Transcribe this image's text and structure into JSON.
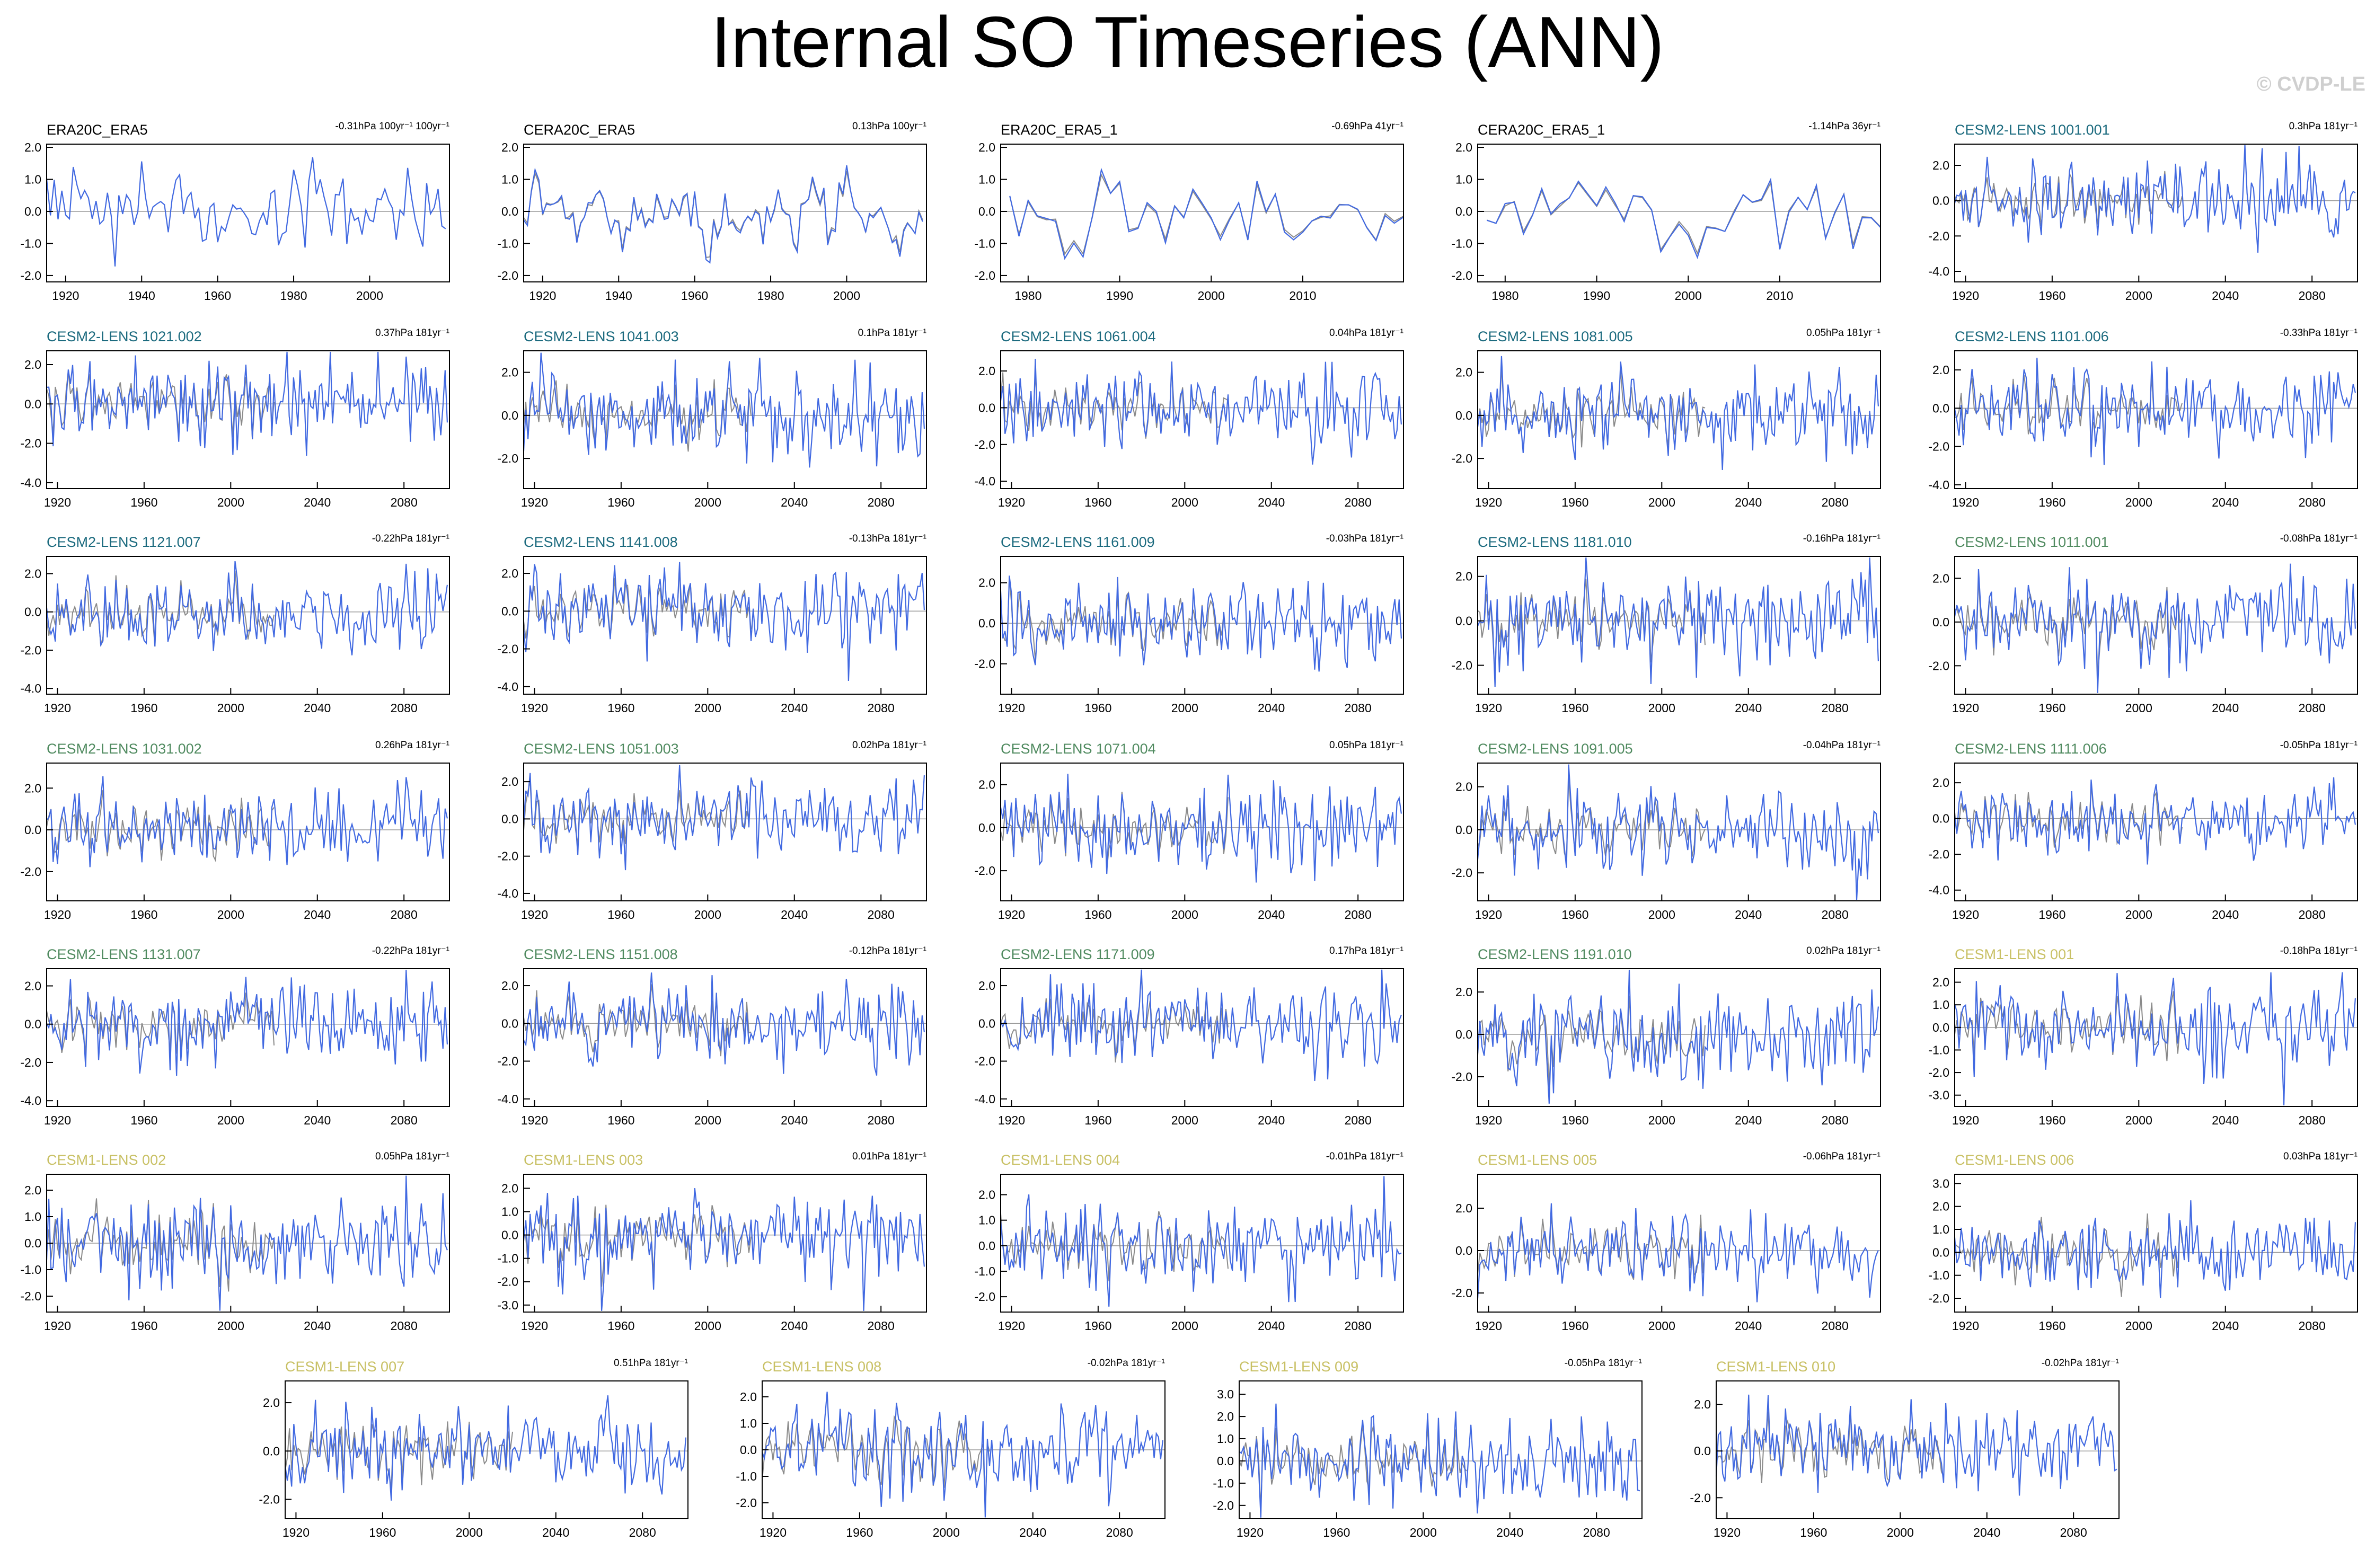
{
  "title": "Internal SO Timeseries (ANN)",
  "watermark": "© CVDP-LE",
  "colors": {
    "model": "#4169e1",
    "obs": "#8a8a8a",
    "zero": "#9a9a9a",
    "obs_title": "#000000",
    "cesm2_a": "#1b6a7e",
    "cesm2_b": "#4f8a5f",
    "cesm1": "#c8c064"
  },
  "chart_data": [
    {
      "type": "line",
      "title": "ERA20C_ERA5",
      "stat": "-0.31hPa 100yr⁻¹ 100yr⁻¹",
      "title_color": "obs_title",
      "xlim": [
        1915,
        2021
      ],
      "xticks": [
        1920,
        1940,
        1960,
        1980,
        2000
      ],
      "yticks": [
        2.0,
        1.0,
        0.0,
        -1.0,
        -2.0
      ],
      "ylim": [
        -2.2,
        2.1
      ],
      "seed": 3,
      "x0": 1915,
      "n": 106,
      "amp": 0.85,
      "step": 1,
      "shape": "smooth"
    },
    {
      "type": "line",
      "title": "CERA20C_ERA5",
      "stat": "0.13hPa 100yr⁻¹",
      "title_color": "obs_title",
      "xlim": [
        1915,
        2021
      ],
      "xticks": [
        1920,
        1940,
        1960,
        1980,
        2000
      ],
      "yticks": [
        2.0,
        1.0,
        0.0,
        -1.0,
        -2.0
      ],
      "ylim": [
        -2.2,
        2.1
      ],
      "seed": 5,
      "x0": 1915,
      "n": 106,
      "amp": 0.75,
      "step": 1,
      "shape": "smooth",
      "obs_overlay": true
    },
    {
      "type": "line",
      "title": "ERA20C_ERA5_1",
      "stat": "-0.69hPa 41yr⁻¹",
      "title_color": "obs_title",
      "xlim": [
        1977,
        2021
      ],
      "xticks": [
        1980,
        1990,
        2000,
        2010
      ],
      "yticks": [
        2.0,
        1.0,
        0.0,
        -1.0,
        -2.0
      ],
      "ylim": [
        -2.2,
        2.1
      ],
      "seed": 7,
      "x0": 1978,
      "n": 44,
      "amp": 0.8,
      "step": 1,
      "shape": "smooth",
      "obs_overlay": true
    },
    {
      "type": "line",
      "title": "CERA20C_ERA5_1",
      "stat": "-1.14hPa 36yr⁻¹",
      "title_color": "obs_title",
      "xlim": [
        1977,
        2021
      ],
      "xticks": [
        1980,
        1990,
        2000,
        2010
      ],
      "yticks": [
        2.0,
        1.0,
        0.0,
        -1.0,
        -2.0
      ],
      "ylim": [
        -2.2,
        2.1
      ],
      "seed": 9,
      "x0": 1978,
      "n": 44,
      "amp": 0.8,
      "step": 1,
      "shape": "smooth",
      "obs_overlay": true
    },
    {
      "type": "line",
      "title": "CESM2-LENS 1001.001",
      "stat": "0.3hPa 181yr⁻¹",
      "title_color": "cesm2_a",
      "xlim": [
        1915,
        2101
      ],
      "xticks": [
        1920,
        1960,
        2000,
        2040,
        2080
      ],
      "yticks": [
        2.0,
        0.0,
        -2.0,
        -4.0
      ],
      "ylim": [
        -4.6,
        3.2
      ],
      "seed": 11,
      "x0": 1915,
      "n": 186,
      "amp": 1.05,
      "step": 1,
      "shape": "noisy",
      "obs_overlay": true
    },
    {
      "type": "line",
      "title": "CESM2-LENS 1021.002",
      "stat": "0.37hPa 181yr⁻¹",
      "title_color": "cesm2_a",
      "xlim": [
        1915,
        2101
      ],
      "xticks": [
        1920,
        1960,
        2000,
        2040,
        2080
      ],
      "yticks": [
        2.0,
        0.0,
        -2.0,
        -4.0
      ],
      "ylim": [
        -4.3,
        2.7
      ],
      "seed": 13,
      "x0": 1915,
      "n": 186,
      "amp": 1.05,
      "step": 1,
      "shape": "noisy",
      "obs_overlay": true
    },
    {
      "type": "line",
      "title": "CESM2-LENS 1041.003",
      "stat": "0.1hPa 181yr⁻¹",
      "title_color": "cesm2_a",
      "xlim": [
        1915,
        2101
      ],
      "xticks": [
        1920,
        1960,
        2000,
        2040,
        2080
      ],
      "yticks": [
        2.0,
        0.0,
        -2.0
      ],
      "ylim": [
        -3.4,
        3.0
      ],
      "seed": 15,
      "x0": 1915,
      "n": 186,
      "amp": 1.0,
      "step": 1,
      "shape": "noisy",
      "obs_overlay": true
    },
    {
      "type": "line",
      "title": "CESM2-LENS 1061.004",
      "stat": "0.04hPa 181yr⁻¹",
      "title_color": "cesm2_a",
      "xlim": [
        1915,
        2101
      ],
      "xticks": [
        1920,
        1960,
        2000,
        2040,
        2080
      ],
      "yticks": [
        2.0,
        0.0,
        -2.0,
        -4.0
      ],
      "ylim": [
        -4.4,
        3.1
      ],
      "seed": 17,
      "x0": 1915,
      "n": 186,
      "amp": 1.05,
      "step": 1,
      "shape": "noisy",
      "obs_overlay": true
    },
    {
      "type": "line",
      "title": "CESM2-LENS 1081.005",
      "stat": "0.05hPa 181yr⁻¹",
      "title_color": "cesm2_a",
      "xlim": [
        1915,
        2101
      ],
      "xticks": [
        1920,
        1960,
        2000,
        2040,
        2080
      ],
      "yticks": [
        2.0,
        0.0,
        -2.0
      ],
      "ylim": [
        -3.4,
        3.0
      ],
      "seed": 19,
      "x0": 1915,
      "n": 186,
      "amp": 1.0,
      "step": 1,
      "shape": "noisy",
      "obs_overlay": true
    },
    {
      "type": "line",
      "title": "CESM2-LENS 1101.006",
      "stat": "-0.33hPa 181yr⁻¹",
      "title_color": "cesm2_a",
      "xlim": [
        1915,
        2101
      ],
      "xticks": [
        1920,
        1960,
        2000,
        2040,
        2080
      ],
      "yticks": [
        2.0,
        0.0,
        -2.0,
        -4.0
      ],
      "ylim": [
        -4.2,
        3.0
      ],
      "seed": 21,
      "x0": 1915,
      "n": 186,
      "amp": 1.05,
      "step": 1,
      "shape": "noisy",
      "obs_overlay": true
    },
    {
      "type": "line",
      "title": "CESM2-LENS 1121.007",
      "stat": "-0.22hPa 181yr⁻¹",
      "title_color": "cesm2_a",
      "xlim": [
        1915,
        2101
      ],
      "xticks": [
        1920,
        1960,
        2000,
        2040,
        2080
      ],
      "yticks": [
        2.0,
        0.0,
        -2.0,
        -4.0
      ],
      "ylim": [
        -4.3,
        2.9
      ],
      "seed": 23,
      "x0": 1915,
      "n": 186,
      "amp": 1.05,
      "step": 1,
      "shape": "noisy",
      "obs_overlay": true
    },
    {
      "type": "line",
      "title": "CESM2-LENS 1141.008",
      "stat": "-0.13hPa 181yr⁻¹",
      "title_color": "cesm2_a",
      "xlim": [
        1915,
        2101
      ],
      "xticks": [
        1920,
        1960,
        2000,
        2040,
        2080
      ],
      "yticks": [
        2.0,
        0.0,
        -2.0,
        -4.0
      ],
      "ylim": [
        -4.4,
        2.9
      ],
      "seed": 25,
      "x0": 1915,
      "n": 186,
      "amp": 1.05,
      "step": 1,
      "shape": "noisy",
      "obs_overlay": true
    },
    {
      "type": "line",
      "title": "CESM2-LENS 1161.009",
      "stat": "-0.03hPa 181yr⁻¹",
      "title_color": "cesm2_a",
      "xlim": [
        1915,
        2101
      ],
      "xticks": [
        1920,
        1960,
        2000,
        2040,
        2080
      ],
      "yticks": [
        2.0,
        0.0,
        -2.0
      ],
      "ylim": [
        -3.5,
        3.3
      ],
      "seed": 27,
      "x0": 1915,
      "n": 186,
      "amp": 1.0,
      "step": 1,
      "shape": "noisy",
      "obs_overlay": true
    },
    {
      "type": "line",
      "title": "CESM2-LENS 1181.010",
      "stat": "-0.16hPa 181yr⁻¹",
      "title_color": "cesm2_a",
      "xlim": [
        1915,
        2101
      ],
      "xticks": [
        1920,
        1960,
        2000,
        2040,
        2080
      ],
      "yticks": [
        2.0,
        0.0,
        -2.0
      ],
      "ylim": [
        -3.3,
        2.9
      ],
      "seed": 29,
      "x0": 1915,
      "n": 186,
      "amp": 1.0,
      "step": 1,
      "shape": "noisy",
      "obs_overlay": true
    },
    {
      "type": "line",
      "title": "CESM2-LENS 1011.001",
      "stat": "-0.08hPa 181yr⁻¹",
      "title_color": "cesm2_b",
      "xlim": [
        1915,
        2101
      ],
      "xticks": [
        1920,
        1960,
        2000,
        2040,
        2080
      ],
      "yticks": [
        2.0,
        0.0,
        -2.0
      ],
      "ylim": [
        -3.3,
        3.0
      ],
      "seed": 31,
      "x0": 1915,
      "n": 186,
      "amp": 1.0,
      "step": 1,
      "shape": "noisy",
      "obs_overlay": true
    },
    {
      "type": "line",
      "title": "CESM2-LENS 1031.002",
      "stat": "0.26hPa 181yr⁻¹",
      "title_color": "cesm2_b",
      "xlim": [
        1915,
        2101
      ],
      "xticks": [
        1920,
        1960,
        2000,
        2040,
        2080
      ],
      "yticks": [
        2.0,
        0.0,
        -2.0
      ],
      "ylim": [
        -3.4,
        3.2
      ],
      "seed": 33,
      "x0": 1915,
      "n": 186,
      "amp": 1.0,
      "step": 1,
      "shape": "noisy",
      "obs_overlay": true
    },
    {
      "type": "line",
      "title": "CESM2-LENS 1051.003",
      "stat": "0.02hPa 181yr⁻¹",
      "title_color": "cesm2_b",
      "xlim": [
        1915,
        2101
      ],
      "xticks": [
        1920,
        1960,
        2000,
        2040,
        2080
      ],
      "yticks": [
        2.0,
        0.0,
        -2.0,
        -4.0
      ],
      "ylim": [
        -4.4,
        3.0
      ],
      "seed": 35,
      "x0": 1915,
      "n": 186,
      "amp": 1.0,
      "step": 1,
      "shape": "noisy",
      "obs_overlay": true
    },
    {
      "type": "line",
      "title": "CESM2-LENS 1071.004",
      "stat": "0.05hPa 181yr⁻¹",
      "title_color": "cesm2_b",
      "xlim": [
        1915,
        2101
      ],
      "xticks": [
        1920,
        1960,
        2000,
        2040,
        2080
      ],
      "yticks": [
        2.0,
        0.0,
        -2.0
      ],
      "ylim": [
        -3.4,
        3.0
      ],
      "seed": 37,
      "x0": 1915,
      "n": 186,
      "amp": 1.0,
      "step": 1,
      "shape": "noisy",
      "obs_overlay": true
    },
    {
      "type": "line",
      "title": "CESM2-LENS 1091.005",
      "stat": "-0.04hPa 181yr⁻¹",
      "title_color": "cesm2_b",
      "xlim": [
        1915,
        2101
      ],
      "xticks": [
        1920,
        1960,
        2000,
        2040,
        2080
      ],
      "yticks": [
        2.0,
        0.0,
        -2.0
      ],
      "ylim": [
        -3.3,
        3.1
      ],
      "seed": 39,
      "x0": 1915,
      "n": 186,
      "amp": 1.0,
      "step": 1,
      "shape": "noisy",
      "obs_overlay": true
    },
    {
      "type": "line",
      "title": "CESM2-LENS 1111.006",
      "stat": "-0.05hPa 181yr⁻¹",
      "title_color": "cesm2_b",
      "xlim": [
        1915,
        2101
      ],
      "xticks": [
        1920,
        1960,
        2000,
        2040,
        2080
      ],
      "yticks": [
        2.0,
        0.0,
        -2.0,
        -4.0
      ],
      "ylim": [
        -4.6,
        3.1
      ],
      "seed": 41,
      "x0": 1915,
      "n": 186,
      "amp": 1.05,
      "step": 1,
      "shape": "noisy",
      "obs_overlay": true
    },
    {
      "type": "line",
      "title": "CESM2-LENS 1131.007",
      "stat": "-0.22hPa 181yr⁻¹",
      "title_color": "cesm2_b",
      "xlim": [
        1915,
        2101
      ],
      "xticks": [
        1920,
        1960,
        2000,
        2040,
        2080
      ],
      "yticks": [
        2.0,
        0.0,
        -2.0,
        -4.0
      ],
      "ylim": [
        -4.3,
        2.9
      ],
      "seed": 43,
      "x0": 1915,
      "n": 186,
      "amp": 1.05,
      "step": 1,
      "shape": "noisy",
      "obs_overlay": true
    },
    {
      "type": "line",
      "title": "CESM2-LENS 1151.008",
      "stat": "-0.12hPa 181yr⁻¹",
      "title_color": "cesm2_b",
      "xlim": [
        1915,
        2101
      ],
      "xticks": [
        1920,
        1960,
        2000,
        2040,
        2080
      ],
      "yticks": [
        2.0,
        0.0,
        -2.0,
        -4.0
      ],
      "ylim": [
        -4.4,
        2.9
      ],
      "seed": 45,
      "x0": 1915,
      "n": 186,
      "amp": 1.05,
      "step": 1,
      "shape": "noisy",
      "obs_overlay": true
    },
    {
      "type": "line",
      "title": "CESM2-LENS 1171.009",
      "stat": "0.17hPa 181yr⁻¹",
      "title_color": "cesm2_b",
      "xlim": [
        1915,
        2101
      ],
      "xticks": [
        1920,
        1960,
        2000,
        2040,
        2080
      ],
      "yticks": [
        2.0,
        0.0,
        -2.0,
        -4.0
      ],
      "ylim": [
        -4.4,
        2.9
      ],
      "seed": 47,
      "x0": 1915,
      "n": 186,
      "amp": 1.05,
      "step": 1,
      "shape": "noisy",
      "obs_overlay": true
    },
    {
      "type": "line",
      "title": "CESM2-LENS 1191.010",
      "stat": "0.02hPa 181yr⁻¹",
      "title_color": "cesm2_b",
      "xlim": [
        1915,
        2101
      ],
      "xticks": [
        1920,
        1960,
        2000,
        2040,
        2080
      ],
      "yticks": [
        2.0,
        0.0,
        -2.0
      ],
      "ylim": [
        -3.4,
        3.1
      ],
      "seed": 49,
      "x0": 1915,
      "n": 186,
      "amp": 1.0,
      "step": 1,
      "shape": "noisy",
      "obs_overlay": true
    },
    {
      "type": "line",
      "title": "CESM1-LENS 001",
      "stat": "-0.18hPa 181yr⁻¹",
      "title_color": "cesm1",
      "xlim": [
        1915,
        2101
      ],
      "xticks": [
        1920,
        1960,
        2000,
        2040,
        2080
      ],
      "yticks": [
        2.0,
        1.0,
        0.0,
        -1.0,
        -2.0,
        -3.0
      ],
      "ylim": [
        -3.5,
        2.6
      ],
      "seed": 51,
      "x0": 1915,
      "n": 186,
      "amp": 0.95,
      "step": 1,
      "shape": "noisy",
      "obs_overlay": true
    },
    {
      "type": "line",
      "title": "CESM1-LENS 002",
      "stat": "0.05hPa 181yr⁻¹",
      "title_color": "cesm1",
      "xlim": [
        1915,
        2101
      ],
      "xticks": [
        1920,
        1960,
        2000,
        2040,
        2080
      ],
      "yticks": [
        2.0,
        1.0,
        0.0,
        -1.0,
        -2.0
      ],
      "ylim": [
        -2.6,
        2.6
      ],
      "seed": 53,
      "x0": 1915,
      "n": 186,
      "amp": 0.85,
      "step": 1,
      "shape": "noisy",
      "obs_overlay": true
    },
    {
      "type": "line",
      "title": "CESM1-LENS 003",
      "stat": "0.01hPa 181yr⁻¹",
      "title_color": "cesm1",
      "xlim": [
        1915,
        2101
      ],
      "xticks": [
        1920,
        1960,
        2000,
        2040,
        2080
      ],
      "yticks": [
        2.0,
        1.0,
        0.0,
        -1.0,
        -2.0,
        -3.0
      ],
      "ylim": [
        -3.3,
        2.6
      ],
      "seed": 55,
      "x0": 1915,
      "n": 186,
      "amp": 0.9,
      "step": 1,
      "shape": "noisy",
      "obs_overlay": true
    },
    {
      "type": "line",
      "title": "CESM1-LENS 004",
      "stat": "-0.01hPa 181yr⁻¹",
      "title_color": "cesm1",
      "xlim": [
        1915,
        2101
      ],
      "xticks": [
        1920,
        1960,
        2000,
        2040,
        2080
      ],
      "yticks": [
        2.0,
        1.0,
        0.0,
        -1.0,
        -2.0
      ],
      "ylim": [
        -2.6,
        2.8
      ],
      "seed": 57,
      "x0": 1915,
      "n": 186,
      "amp": 0.85,
      "step": 1,
      "shape": "noisy",
      "obs_overlay": true
    },
    {
      "type": "line",
      "title": "CESM1-LENS 005",
      "stat": "-0.06hPa 181yr⁻¹",
      "title_color": "cesm1",
      "xlim": [
        1915,
        2101
      ],
      "xticks": [
        1920,
        1960,
        2000,
        2040,
        2080
      ],
      "yticks": [
        2.0,
        0.0,
        -2.0
      ],
      "ylim": [
        -2.9,
        3.6
      ],
      "seed": 59,
      "x0": 1915,
      "n": 186,
      "amp": 0.85,
      "step": 1,
      "shape": "noisy",
      "obs_overlay": true
    },
    {
      "type": "line",
      "title": "CESM1-LENS 006",
      "stat": "0.03hPa 181yr⁻¹",
      "title_color": "cesm1",
      "xlim": [
        1915,
        2101
      ],
      "xticks": [
        1920,
        1960,
        2000,
        2040,
        2080
      ],
      "yticks": [
        3.0,
        2.0,
        1.0,
        0.0,
        -1.0,
        -2.0
      ],
      "ylim": [
        -2.6,
        3.4
      ],
      "seed": 61,
      "x0": 1915,
      "n": 186,
      "amp": 0.85,
      "step": 1,
      "shape": "noisy",
      "obs_overlay": true
    },
    {
      "type": "line",
      "title": "CESM1-LENS 007",
      "stat": "0.51hPa 181yr⁻¹",
      "title_color": "cesm1",
      "xlim": [
        1915,
        2101
      ],
      "xticks": [
        1920,
        1960,
        2000,
        2040,
        2080
      ],
      "yticks": [
        2.0,
        0.0,
        -2.0
      ],
      "ylim": [
        -2.8,
        2.9
      ],
      "seed": 63,
      "x0": 1915,
      "n": 186,
      "amp": 0.85,
      "step": 1,
      "shape": "noisy",
      "obs_overlay": true
    },
    {
      "type": "line",
      "title": "CESM1-LENS 008",
      "stat": "-0.02hPa 181yr⁻¹",
      "title_color": "cesm1",
      "xlim": [
        1915,
        2101
      ],
      "xticks": [
        1920,
        1960,
        2000,
        2040,
        2080
      ],
      "yticks": [
        2.0,
        1.0,
        0.0,
        -1.0,
        -2.0
      ],
      "ylim": [
        -2.6,
        2.6
      ],
      "seed": 65,
      "x0": 1915,
      "n": 186,
      "amp": 0.85,
      "step": 1,
      "shape": "noisy",
      "obs_overlay": true
    },
    {
      "type": "line",
      "title": "CESM1-LENS 009",
      "stat": "-0.05hPa 181yr⁻¹",
      "title_color": "cesm1",
      "xlim": [
        1915,
        2101
      ],
      "xticks": [
        1920,
        1960,
        2000,
        2040,
        2080
      ],
      "yticks": [
        3.0,
        2.0,
        1.0,
        0.0,
        -1.0,
        -2.0
      ],
      "ylim": [
        -2.6,
        3.6
      ],
      "seed": 67,
      "x0": 1915,
      "n": 186,
      "amp": 0.9,
      "step": 1,
      "shape": "noisy",
      "obs_overlay": true
    },
    {
      "type": "line",
      "title": "CESM1-LENS 010",
      "stat": "-0.02hPa 181yr⁻¹",
      "title_color": "cesm1",
      "xlim": [
        1915,
        2101
      ],
      "xticks": [
        1920,
        1960,
        2000,
        2040,
        2080
      ],
      "yticks": [
        2.0,
        0.0,
        -2.0
      ],
      "ylim": [
        -2.9,
        3.0
      ],
      "seed": 69,
      "x0": 1915,
      "n": 186,
      "amp": 0.85,
      "step": 1,
      "shape": "noisy",
      "obs_overlay": true
    }
  ]
}
